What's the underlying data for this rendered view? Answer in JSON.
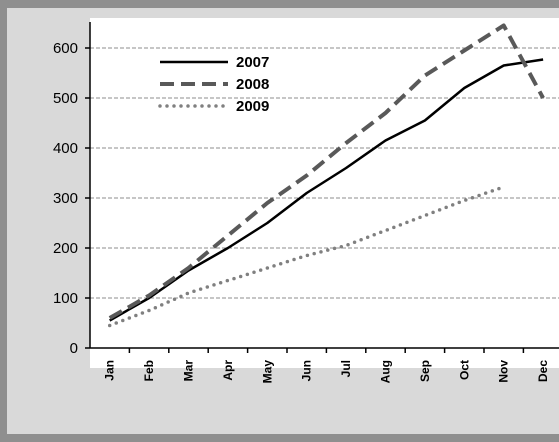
{
  "chart_data": {
    "type": "line",
    "title": "",
    "xlabel": "",
    "ylabel": "",
    "categories": [
      "Jan",
      "Feb",
      "Mar",
      "Apr",
      "May",
      "Jun",
      "Jul",
      "Aug",
      "Sep",
      "Oct",
      "Nov",
      "Dec"
    ],
    "yticks": [
      "0",
      "100",
      "200",
      "300",
      "400",
      "500",
      "600"
    ],
    "ylim": [
      0,
      650
    ],
    "grid": true,
    "legend_position": "top-left",
    "series": [
      {
        "name": "2007",
        "style": "solid",
        "color": "#000000",
        "x": [
          "Jan",
          "Feb",
          "Mar",
          "Apr",
          "May",
          "Jun",
          "Jul",
          "Aug",
          "Sep",
          "Oct",
          "Nov",
          "Dec"
        ],
        "values": [
          55,
          100,
          155,
          200,
          250,
          310,
          360,
          415,
          455,
          520,
          565,
          577
        ]
      },
      {
        "name": "2008",
        "style": "dashed",
        "color": "#595959",
        "x": [
          "Jan",
          "Feb",
          "Mar",
          "Apr",
          "May",
          "Jun",
          "Jul",
          "Aug",
          "Sep",
          "Oct",
          "Nov",
          "Dec"
        ],
        "values": [
          60,
          105,
          160,
          225,
          290,
          345,
          410,
          470,
          545,
          595,
          645,
          500
        ]
      },
      {
        "name": "2009",
        "style": "dotted",
        "color": "#808080",
        "x": [
          "Jan",
          "Feb",
          "Mar",
          "Apr",
          "May",
          "Jun",
          "Jul",
          "Aug",
          "Sep",
          "Oct",
          "Nov"
        ],
        "values": [
          45,
          75,
          110,
          135,
          160,
          185,
          205,
          235,
          265,
          295,
          322
        ]
      }
    ]
  }
}
